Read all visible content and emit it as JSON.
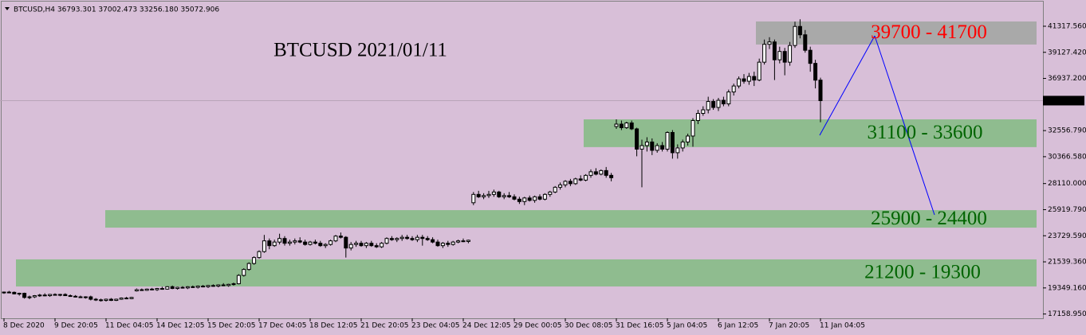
{
  "chart_data": {
    "type": "candlestick",
    "title": "BTCUSD 2021/01/11",
    "header": "BTCUSD,H4  36793.301 37002.473 33256.180 35072.906",
    "ylim": [
      16800,
      43520
    ],
    "yticks": [
      {
        "value": 41317.56,
        "label": "41317.560"
      },
      {
        "value": 39127.42,
        "label": "39127.420"
      },
      {
        "value": 36937.2,
        "label": "36937.200"
      },
      {
        "value": 32556.79,
        "label": "32556.790"
      },
      {
        "value": 30366.58,
        "label": "30366.580"
      },
      {
        "value": 28110,
        "label": "28110.000"
      },
      {
        "value": 25919.79,
        "label": "25919.790"
      },
      {
        "value": 23729.59,
        "label": "23729.590"
      },
      {
        "value": 21539.36,
        "label": "21539.360"
      },
      {
        "value": 19349.16,
        "label": "19349.160"
      },
      {
        "value": 17158.95,
        "label": "17158.950"
      }
    ],
    "bull_color": "#ffffff",
    "bear_color": "#000000",
    "zones": [
      {
        "label": "39700 - 41700",
        "low": 39780,
        "high": 41720,
        "fill": "#a9a9a9",
        "text_color": "#ff0000"
      },
      {
        "label": "31100 - 33600",
        "low": 31170,
        "high": 33500,
        "fill": "#8fbc8f",
        "text_color": "#006400"
      },
      {
        "label": "25900 - 24400",
        "low": 24410,
        "high": 25880,
        "fill": "#8fbc8f",
        "text_color": "#006400"
      },
      {
        "label": "21200 - 19300",
        "low": 19470,
        "high": 21745,
        "fill": "#8fbc8f",
        "text_color": "#006400"
      }
    ],
    "categories": [
      "8 Dec 2020",
      null,
      null,
      null,
      null,
      null,
      null,
      null,
      null,
      null,
      "9 Dec 20:05",
      null,
      null,
      null,
      null,
      null,
      null,
      null,
      null,
      null,
      "11 Dec 04:05",
      null,
      null,
      null,
      null,
      null,
      null,
      null,
      null,
      null,
      "14 Dec 12:05",
      null,
      null,
      null,
      null,
      null,
      null,
      null,
      null,
      null,
      "15 Dec 20:05",
      null,
      null,
      null,
      null,
      null,
      null,
      null,
      null,
      null,
      "17 Dec 04:05",
      null,
      null,
      null,
      null,
      null,
      null,
      null,
      null,
      null,
      "18 Dec 12:05",
      null,
      null,
      null,
      null,
      null,
      null,
      null,
      null,
      null,
      "21 Dec 20:05",
      null,
      null,
      null,
      null,
      null,
      null,
      null,
      null,
      null,
      "23 Dec 04:05",
      null,
      null,
      null,
      null,
      null,
      null,
      null,
      null,
      null,
      "24 Dec 12:05",
      null,
      null,
      null,
      null,
      null,
      null,
      null,
      null,
      null,
      "29 Dec 00:05",
      null,
      null,
      null,
      null,
      null,
      null,
      null,
      null,
      null,
      "30 Dec 08:05",
      null,
      null,
      null,
      null,
      null,
      null,
      null,
      null,
      null,
      "31 Dec 16:05",
      null,
      null,
      null,
      null,
      null,
      null,
      null,
      null,
      null,
      "5 Jan 04:05",
      null,
      null,
      null,
      null,
      null,
      null,
      null,
      null,
      null,
      "6 Jan 12:05",
      null,
      null,
      null,
      null,
      null,
      null,
      null,
      null,
      null,
      "7 Jan 20:05",
      null,
      null,
      null,
      null,
      null,
      null,
      null,
      null,
      null,
      "11 Jan 04:05"
    ],
    "candles": [
      [
        18950,
        19050,
        18850,
        19000
      ],
      [
        19000,
        19100,
        18900,
        18980
      ],
      [
        18980,
        19050,
        18800,
        18850
      ],
      [
        18850,
        18950,
        18700,
        18900
      ],
      [
        18900,
        18950,
        18450,
        18550
      ],
      [
        18550,
        18700,
        18400,
        18600
      ],
      [
        18600,
        18750,
        18500,
        18700
      ],
      [
        18700,
        18850,
        18600,
        18750
      ],
      [
        18750,
        18900,
        18650,
        18700
      ],
      [
        18700,
        18850,
        18600,
        18800
      ],
      [
        18800,
        18900,
        18700,
        18750
      ],
      [
        18750,
        18850,
        18650,
        18800
      ],
      [
        18800,
        18900,
        18700,
        18700
      ],
      [
        18700,
        18800,
        18600,
        18650
      ],
      [
        18650,
        18750,
        18550,
        18600
      ],
      [
        18600,
        18700,
        18500,
        18550
      ],
      [
        18550,
        18650,
        18450,
        18600
      ],
      [
        18600,
        18700,
        18300,
        18400
      ],
      [
        18400,
        18500,
        18250,
        18350
      ],
      [
        18350,
        18450,
        18200,
        18300
      ],
      [
        18300,
        18450,
        18200,
        18400
      ],
      [
        18400,
        18500,
        18250,
        18300
      ],
      [
        18300,
        18450,
        18250,
        18400
      ],
      [
        18400,
        18550,
        18350,
        18500
      ],
      [
        18500,
        18600,
        18400,
        18450
      ],
      [
        18450,
        18600,
        18400,
        18550
      ],
      [
        19100,
        19300,
        19050,
        19200
      ],
      [
        19200,
        19300,
        19100,
        19150
      ],
      [
        19150,
        19300,
        19100,
        19250
      ],
      [
        19250,
        19350,
        19150,
        19200
      ],
      [
        19200,
        19350,
        19100,
        19300
      ],
      [
        19300,
        19450,
        19200,
        19250
      ],
      [
        19250,
        19500,
        19200,
        19450
      ],
      [
        19450,
        19550,
        19250,
        19300
      ],
      [
        19300,
        19450,
        19200,
        19400
      ],
      [
        19400,
        19500,
        19300,
        19350
      ],
      [
        19350,
        19500,
        19250,
        19450
      ],
      [
        19450,
        19550,
        19350,
        19400
      ],
      [
        19400,
        19550,
        19300,
        19500
      ],
      [
        19500,
        19600,
        19400,
        19450
      ],
      [
        19450,
        19600,
        19350,
        19550
      ],
      [
        19550,
        19650,
        19450,
        19500
      ],
      [
        19500,
        19650,
        19400,
        19600
      ],
      [
        19600,
        19750,
        19500,
        19550
      ],
      [
        19550,
        19700,
        19450,
        19650
      ],
      [
        19650,
        19800,
        19550,
        19700
      ],
      [
        19700,
        20500,
        19650,
        20400
      ],
      [
        20400,
        21000,
        20300,
        20900
      ],
      [
        20900,
        21500,
        20800,
        21400
      ],
      [
        21400,
        22000,
        21300,
        21900
      ],
      [
        21900,
        22500,
        21800,
        22400
      ],
      [
        22400,
        23800,
        22300,
        23300
      ],
      [
        23300,
        23500,
        22600,
        22900
      ],
      [
        22900,
        23400,
        22800,
        23200
      ],
      [
        23200,
        23900,
        23000,
        23500
      ],
      [
        23500,
        23700,
        22900,
        23100
      ],
      [
        23100,
        23400,
        22900,
        23200
      ],
      [
        23200,
        23500,
        23000,
        23300
      ],
      [
        23300,
        23600,
        23100,
        23200
      ],
      [
        23200,
        23400,
        22900,
        23000
      ],
      [
        23000,
        23300,
        22900,
        23200
      ],
      [
        23200,
        23400,
        23000,
        23100
      ],
      [
        23100,
        23300,
        22800,
        22900
      ],
      [
        22900,
        23100,
        22700,
        23000
      ],
      [
        23000,
        23400,
        22900,
        23300
      ],
      [
        23300,
        23800,
        23200,
        23700
      ],
      [
        23700,
        24000,
        23500,
        23600
      ],
      [
        23600,
        23700,
        21900,
        22700
      ],
      [
        22700,
        23200,
        22500,
        23000
      ],
      [
        23000,
        23300,
        22800,
        23100
      ],
      [
        23100,
        23300,
        22800,
        22900
      ],
      [
        22900,
        23200,
        22700,
        23100
      ],
      [
        23100,
        23300,
        22800,
        22900
      ],
      [
        22900,
        23100,
        22700,
        22800
      ],
      [
        22800,
        23200,
        22700,
        23100
      ],
      [
        23100,
        23600,
        23000,
        23500
      ],
      [
        23500,
        23700,
        23300,
        23400
      ],
      [
        23400,
        23600,
        23200,
        23500
      ],
      [
        23500,
        23800,
        23300,
        23600
      ],
      [
        23600,
        23800,
        23400,
        23500
      ],
      [
        23500,
        23700,
        23300,
        23400
      ],
      [
        23400,
        23800,
        23200,
        23600
      ],
      [
        23600,
        23800,
        22900,
        23500
      ],
      [
        23500,
        23700,
        23300,
        23400
      ],
      [
        23400,
        23600,
        23100,
        23200
      ],
      [
        23200,
        23400,
        22800,
        22900
      ],
      [
        22900,
        23200,
        22700,
        23100
      ],
      [
        23100,
        23300,
        22800,
        23000
      ],
      [
        23000,
        23300,
        22900,
        23200
      ],
      [
        23200,
        23400,
        23100,
        23300
      ],
      [
        23300,
        23500,
        23200,
        23250
      ],
      [
        23250,
        23400,
        23100,
        23350
      ],
      [
        26500,
        27400,
        26300,
        27200
      ],
      [
        27200,
        27500,
        26900,
        27000
      ],
      [
        27000,
        27300,
        26800,
        27100
      ],
      [
        27100,
        27500,
        26900,
        27200
      ],
      [
        27200,
        27600,
        27000,
        27400
      ],
      [
        27400,
        27500,
        26900,
        27000
      ],
      [
        27000,
        27300,
        26800,
        27100
      ],
      [
        27100,
        27400,
        26900,
        27000
      ],
      [
        27000,
        27200,
        26700,
        26800
      ],
      [
        26800,
        27000,
        26400,
        26600
      ],
      [
        26600,
        27000,
        26300,
        26900
      ],
      [
        26900,
        27100,
        26600,
        26700
      ],
      [
        26700,
        27100,
        26500,
        27000
      ],
      [
        27000,
        27200,
        26700,
        26800
      ],
      [
        26800,
        27300,
        26700,
        27200
      ],
      [
        27200,
        27500,
        27000,
        27400
      ],
      [
        27400,
        27900,
        27300,
        27800
      ],
      [
        27800,
        28200,
        27600,
        28000
      ],
      [
        28000,
        28400,
        27800,
        28300
      ],
      [
        28300,
        28500,
        27900,
        28100
      ],
      [
        28100,
        28600,
        28000,
        28500
      ],
      [
        28500,
        28800,
        28300,
        28400
      ],
      [
        28400,
        28900,
        28300,
        28800
      ],
      [
        28800,
        29300,
        28600,
        29100
      ],
      [
        29100,
        29400,
        28800,
        28900
      ],
      [
        28900,
        29300,
        28800,
        29200
      ],
      [
        29200,
        29500,
        28600,
        28800
      ],
      [
        28800,
        29000,
        28300,
        28600
      ],
      [
        32900,
        33500,
        32700,
        33100
      ],
      [
        33100,
        33400,
        32600,
        32800
      ],
      [
        32800,
        33300,
        32700,
        33200
      ],
      [
        33200,
        33400,
        32600,
        32700
      ],
      [
        32700,
        32800,
        30400,
        31000
      ],
      [
        31000,
        31800,
        27800,
        31300
      ],
      [
        31300,
        32000,
        30800,
        31600
      ],
      [
        31600,
        31900,
        30500,
        30900
      ],
      [
        30900,
        31500,
        30700,
        31300
      ],
      [
        31300,
        31600,
        30800,
        31000
      ],
      [
        31000,
        32500,
        30800,
        32400
      ],
      [
        32400,
        32600,
        30200,
        30700
      ],
      [
        30700,
        31400,
        30200,
        31100
      ],
      [
        31100,
        31800,
        30800,
        31600
      ],
      [
        31600,
        32300,
        31300,
        32100
      ],
      [
        32100,
        33600,
        31200,
        33400
      ],
      [
        33400,
        34300,
        33100,
        34000
      ],
      [
        34000,
        34600,
        33800,
        34300
      ],
      [
        34300,
        35400,
        34000,
        35000
      ],
      [
        35000,
        35200,
        34300,
        34500
      ],
      [
        34500,
        35300,
        34200,
        35100
      ],
      [
        35100,
        35400,
        34600,
        34800
      ],
      [
        34800,
        36000,
        34600,
        35800
      ],
      [
        35800,
        36500,
        35500,
        36300
      ],
      [
        36300,
        37100,
        36100,
        36900
      ],
      [
        36900,
        37300,
        36500,
        36700
      ],
      [
        36700,
        37400,
        36400,
        37100
      ],
      [
        37100,
        37500,
        36300,
        36800
      ],
      [
        36800,
        38600,
        36700,
        38300
      ],
      [
        38300,
        40200,
        38100,
        39800
      ],
      [
        39800,
        40400,
        39400,
        40000
      ],
      [
        40000,
        40200,
        36800,
        38500
      ],
      [
        38500,
        39600,
        38200,
        39200
      ],
      [
        39200,
        39500,
        37200,
        38300
      ],
      [
        38300,
        40000,
        38000,
        39700
      ],
      [
        39700,
        41700,
        39500,
        41300
      ],
      [
        41300,
        41900,
        40300,
        40600
      ],
      [
        40600,
        41000,
        39100,
        39300
      ],
      [
        39300,
        39600,
        37500,
        38200
      ],
      [
        38200,
        38500,
        36100,
        36793.301
      ],
      [
        36793.301,
        37002.473,
        33256.18,
        35072.906
      ]
    ]
  }
}
